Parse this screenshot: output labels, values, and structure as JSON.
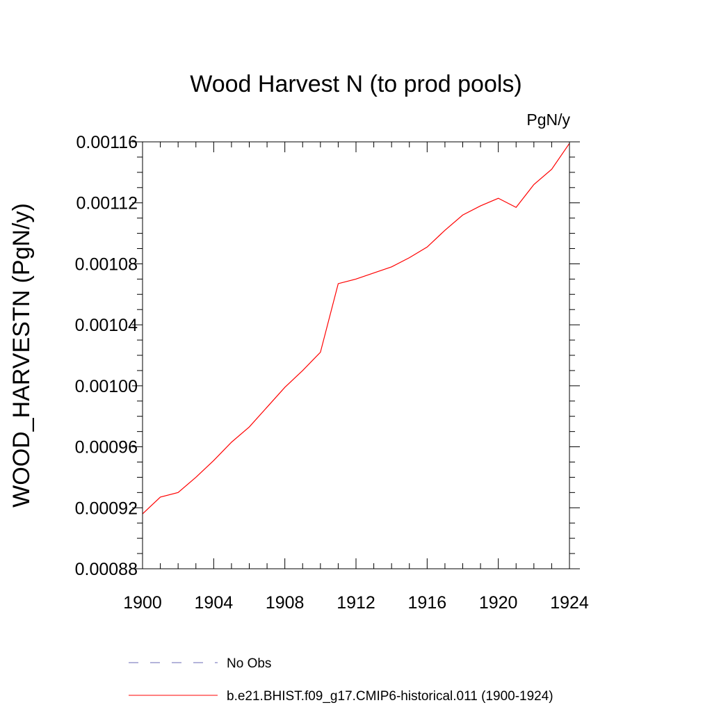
{
  "chart_data": {
    "type": "line",
    "title": "Wood Harvest N (to prod pools)",
    "units_label": "PgN/y",
    "ylabel": "WOOD_HARVESTN  (PgN/y)",
    "xlabel": "",
    "xlim": [
      1900,
      1924
    ],
    "ylim": [
      0.00088,
      0.00116
    ],
    "x_ticks": [
      "1900",
      "1904",
      "1908",
      "1912",
      "1916",
      "1920",
      "1924"
    ],
    "y_ticks": [
      "0.00088",
      "0.00092",
      "0.00096",
      "0.00100",
      "0.00104",
      "0.00108",
      "0.00112",
      "0.00116"
    ],
    "grid": false,
    "legend_position": "bottom",
    "series": [
      {
        "name": "No Obs",
        "style": "dashed",
        "color": "#6a6ab5",
        "x": [],
        "values": []
      },
      {
        "name": "b.e21.BHIST.f09_g17.CMIP6-historical.011 (1900-1924)",
        "style": "solid",
        "color": "#ff0000",
        "x": [
          1900,
          1901,
          1902,
          1903,
          1904,
          1905,
          1906,
          1907,
          1908,
          1909,
          1910,
          1911,
          1912,
          1913,
          1914,
          1915,
          1916,
          1917,
          1918,
          1919,
          1920,
          1921,
          1922,
          1923,
          1924
        ],
        "values": [
          0.000916,
          0.000927,
          0.00093,
          0.00094,
          0.000951,
          0.000963,
          0.000973,
          0.000986,
          0.000999,
          0.00101,
          0.001022,
          0.001067,
          0.00107,
          0.001074,
          0.001078,
          0.001084,
          0.001091,
          0.001102,
          0.001112,
          0.001118,
          0.001123,
          0.001117,
          0.001132,
          0.001142,
          0.001159
        ]
      }
    ]
  }
}
